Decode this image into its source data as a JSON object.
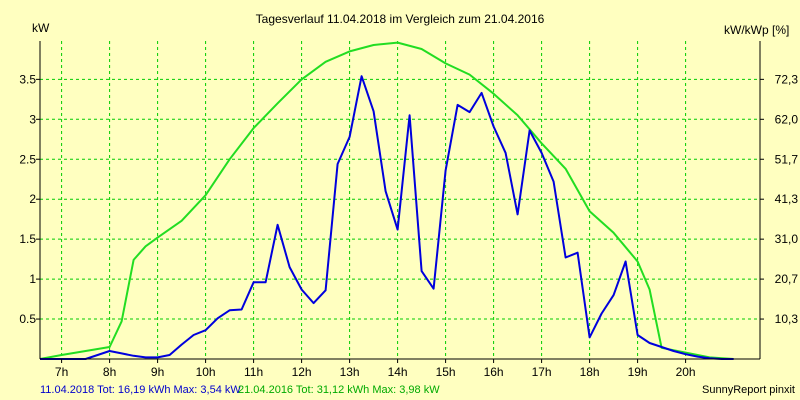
{
  "chart_data": {
    "type": "line",
    "title": "Tagesverlauf 11.04.2018 im Vergleich zum 21.04.2016",
    "ylabel_left": "kW",
    "ylabel_right": "kW/kWp [%]",
    "xlabel": "",
    "grid": true,
    "x_unit": "hours",
    "xlim": [
      6.55,
      21.55
    ],
    "ylim": [
      0,
      3.98
    ],
    "x_tick_values": [
      7,
      8,
      9,
      10,
      11,
      12,
      13,
      14,
      15,
      16,
      17,
      18,
      19,
      20
    ],
    "x_tick_labels": [
      "7h",
      "8h",
      "9h",
      "10h",
      "11h",
      "12h",
      "13h",
      "14h",
      "15h",
      "16h",
      "17h",
      "18h",
      "19h",
      "20h"
    ],
    "y_tick_values": [
      0.5,
      1,
      1.5,
      2,
      2.5,
      3,
      3.5
    ],
    "y_tick_labels": [
      "0.5",
      "1",
      "1.5",
      "2",
      "2.5",
      "3",
      "3.5"
    ],
    "y2_tick_values": [
      0.5,
      1.0,
      1.5,
      2.0,
      2.5,
      3.0,
      3.5
    ],
    "y2_tick_labels": [
      "10,3",
      "20,7",
      "31,0",
      "41,3",
      "51,7",
      "62,0",
      "72,3"
    ],
    "series": [
      {
        "name": "11.04.2018",
        "color": "#0000dd",
        "x": [
          6.55,
          7.0,
          7.5,
          7.75,
          8.0,
          8.25,
          8.5,
          8.75,
          9.0,
          9.25,
          9.5,
          9.75,
          10.0,
          10.25,
          10.5,
          10.75,
          11.0,
          11.25,
          11.5,
          11.75,
          12.0,
          12.25,
          12.5,
          12.75,
          13.0,
          13.25,
          13.5,
          13.75,
          14.0,
          14.25,
          14.5,
          14.75,
          15.0,
          15.25,
          15.5,
          15.75,
          16.0,
          16.25,
          16.5,
          16.75,
          17.0,
          17.25,
          17.5,
          17.75,
          18.0,
          18.25,
          18.5,
          18.75,
          19.0,
          19.25,
          19.5,
          19.75,
          20.0,
          20.25,
          20.5,
          20.75,
          21.0
        ],
        "y": [
          0.0,
          0.0,
          0.0,
          0.05,
          0.1,
          0.07,
          0.04,
          0.02,
          0.02,
          0.05,
          0.18,
          0.3,
          0.36,
          0.51,
          0.61,
          0.62,
          0.96,
          0.96,
          1.68,
          1.15,
          0.87,
          0.7,
          0.86,
          2.44,
          2.78,
          3.54,
          3.1,
          2.1,
          1.62,
          3.05,
          1.1,
          0.88,
          2.36,
          3.18,
          3.09,
          3.33,
          2.91,
          2.58,
          1.81,
          2.86,
          2.58,
          2.22,
          1.27,
          1.33,
          0.27,
          0.57,
          0.8,
          1.22,
          0.3,
          0.2,
          0.15,
          0.1,
          0.06,
          0.03,
          0.01,
          0.0,
          0.0
        ]
      },
      {
        "name": "21.04.2016",
        "color": "#22dd22",
        "x": [
          6.55,
          7.0,
          7.5,
          8.0,
          8.25,
          8.5,
          8.75,
          9.0,
          9.5,
          10.0,
          10.5,
          11.0,
          11.5,
          12.0,
          12.5,
          13.0,
          13.5,
          14.0,
          14.5,
          15.0,
          15.5,
          16.0,
          16.5,
          17.0,
          17.5,
          18.0,
          18.5,
          19.0,
          19.25,
          19.5,
          20.0,
          20.5,
          21.0
        ],
        "y": [
          0.0,
          0.05,
          0.1,
          0.15,
          0.47,
          1.24,
          1.41,
          1.52,
          1.73,
          2.05,
          2.5,
          2.89,
          3.2,
          3.5,
          3.72,
          3.85,
          3.93,
          3.96,
          3.88,
          3.7,
          3.56,
          3.32,
          3.05,
          2.7,
          2.38,
          1.85,
          1.58,
          1.22,
          0.87,
          0.14,
          0.08,
          0.02,
          0.0
        ]
      }
    ]
  },
  "labels": {
    "kw": "kW",
    "kwp": "kW/kWp [%]",
    "title": "Tagesverlauf 11.04.2018 im Vergleich zum 21.04.2016",
    "footer_blue": "11.04.2018 Tot: 16,19 kWh Max: 3,54 kW",
    "footer_green": "21.04.2016 Tot: 31,12 kWh Max: 3,98 kW",
    "footer_brand": "SunnyReport pinxit"
  },
  "colors": {
    "background": "#ffffc0",
    "grid": "#00cc00",
    "axis": "#000000"
  }
}
